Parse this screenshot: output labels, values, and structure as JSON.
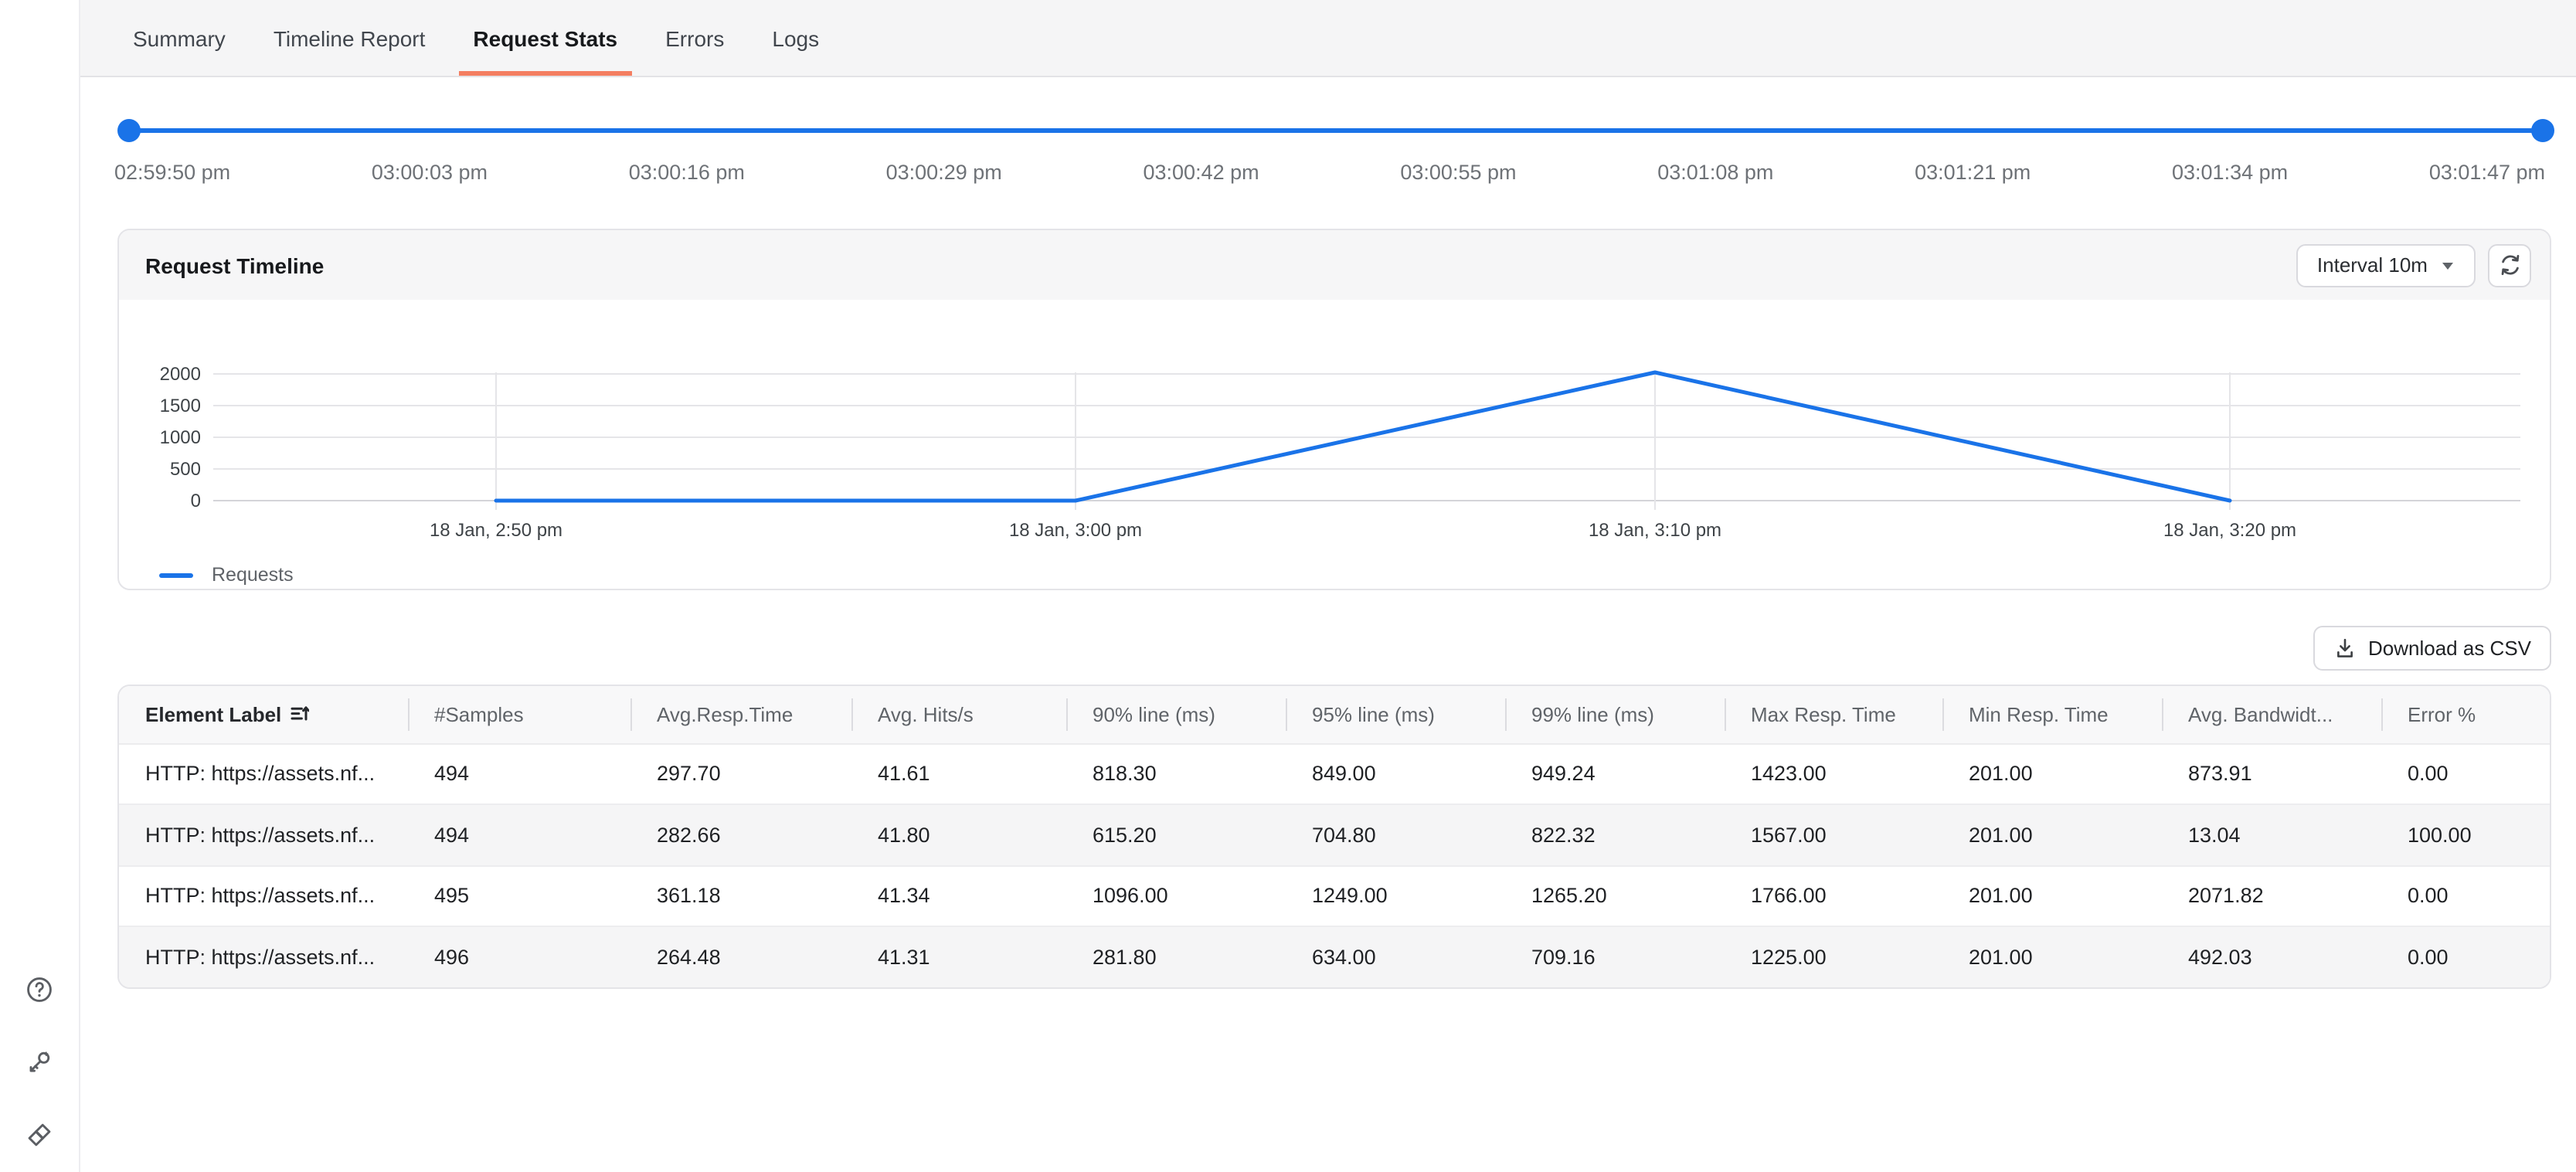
{
  "tabs": [
    {
      "label": "Summary"
    },
    {
      "label": "Timeline Report"
    },
    {
      "label": "Request Stats"
    },
    {
      "label": "Errors"
    },
    {
      "label": "Logs"
    }
  ],
  "active_tab": "Request Stats",
  "time_slider": {
    "ticks": [
      "02:59:50 pm",
      "03:00:03 pm",
      "03:00:16 pm",
      "03:00:29 pm",
      "03:00:42 pm",
      "03:00:55 pm",
      "03:01:08 pm",
      "03:01:21 pm",
      "03:01:34 pm",
      "03:01:47 pm"
    ],
    "start": "02:59:50 pm",
    "end": "03:01:47 pm"
  },
  "timeline_panel": {
    "title": "Request Timeline",
    "interval_button": "Interval 10m",
    "legend": "Requests"
  },
  "chart_data": {
    "type": "line",
    "title": "Request Timeline",
    "x": [
      "18 Jan, 2:50 pm",
      "18 Jan, 3:00 pm",
      "18 Jan, 3:10 pm",
      "18 Jan, 3:20 pm"
    ],
    "series": [
      {
        "name": "Requests",
        "values": [
          0,
          0,
          2025,
          0
        ]
      }
    ],
    "yticks": [
      0,
      500,
      1000,
      1500,
      2000
    ],
    "ylim": [
      0,
      2000
    ],
    "grid": true,
    "legend_position": "bottom-left",
    "line_color": "#1a73e8"
  },
  "table": {
    "download_button": "Download as CSV",
    "sort_column": "Element Label",
    "columns": [
      "#Samples",
      "Avg.Resp.Time",
      "Avg. Hits/s",
      "90% line (ms)",
      "95% line (ms)",
      "99% line (ms)",
      "Max Resp. Time",
      "Min Resp. Time",
      "Avg. Bandwidt...",
      "Error %"
    ],
    "rows": [
      [
        "HTTP: https://assets.nf...",
        "494",
        "297.70",
        "41.61",
        "818.30",
        "849.00",
        "949.24",
        "1423.00",
        "201.00",
        "873.91",
        "0.00"
      ],
      [
        "HTTP: https://assets.nf...",
        "494",
        "282.66",
        "41.80",
        "615.20",
        "704.80",
        "822.32",
        "1567.00",
        "201.00",
        "13.04",
        "100.00"
      ],
      [
        "HTTP: https://assets.nf...",
        "495",
        "361.18",
        "41.34",
        "1096.00",
        "1249.00",
        "1265.20",
        "1766.00",
        "201.00",
        "2071.82",
        "0.00"
      ],
      [
        "HTTP: https://assets.nf...",
        "496",
        "264.48",
        "41.31",
        "281.80",
        "634.00",
        "709.16",
        "1225.00",
        "201.00",
        "492.03",
        "0.00"
      ]
    ]
  },
  "colors": {
    "accent_blue": "#1a73e8",
    "active_tab_underline": "#f47e61"
  }
}
